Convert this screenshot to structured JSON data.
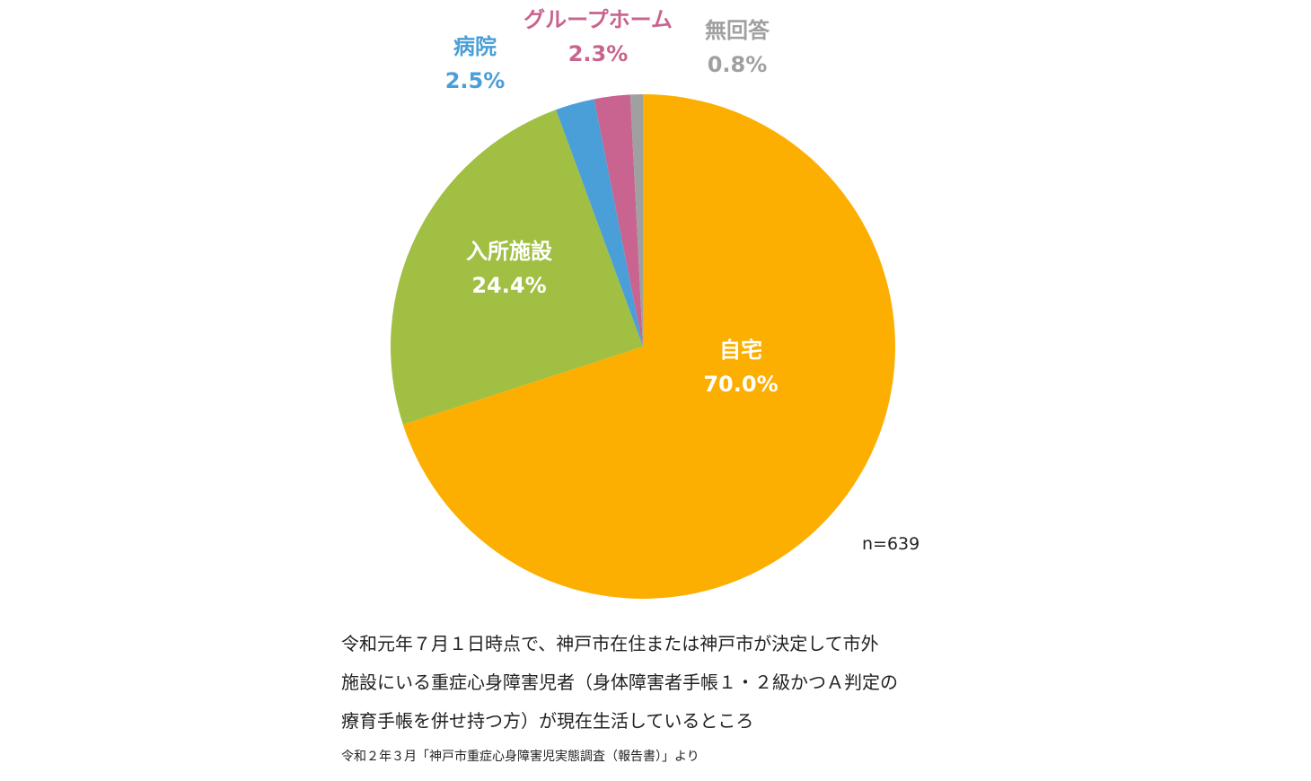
{
  "chart_data": {
    "type": "pie",
    "start_angle_deg": 0,
    "direction": "clockwise",
    "slices": [
      {
        "name": "自宅",
        "value": 70.0,
        "value_label": "70.0%",
        "color": "#FCAF00",
        "label_color": "#ffffff",
        "label_position": "inside"
      },
      {
        "name": "入所施設",
        "value": 24.4,
        "value_label": "24.4%",
        "color": "#A0BF43",
        "label_color": "#ffffff",
        "label_position": "inside"
      },
      {
        "name": "病院",
        "value": 2.5,
        "value_label": "2.5%",
        "color": "#4A9FD9",
        "label_color": "#4A9FD9",
        "label_position": "outside"
      },
      {
        "name": "グループホーム",
        "value": 2.3,
        "value_label": "2.3%",
        "color": "#C8648F",
        "label_color": "#C8648F",
        "label_position": "outside"
      },
      {
        "name": "無回答",
        "value": 0.8,
        "value_label": "0.8%",
        "color": "#A0A0A0",
        "label_color": "#A0A0A0",
        "label_position": "outside"
      }
    ],
    "sample_size": "n=639"
  },
  "caption_lines": [
    "令和元年７月１日時点で、神戸市在住または神戸市が決定して市外",
    "施設にいる重症心身障害児者（身体障害者手帳１・２級かつＡ判定の",
    "療育手帳を併せ持つ方）が現在生活しているところ"
  ],
  "source": "令和２年３月「神戸市重症心身障害児実態調査（報告書）」より"
}
